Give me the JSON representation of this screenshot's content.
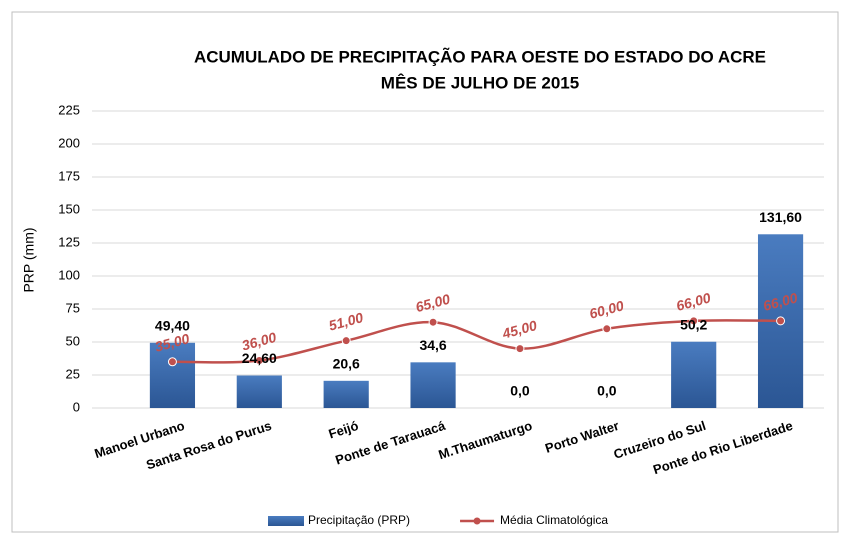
{
  "chart_data": {
    "type": "bar",
    "title": "ACUMULADO DE PRECIPITAÇÃO  PARA  OESTE   DO ESTADO DO ACRE",
    "subtitle": "MÊS DE JULHO DE 2015",
    "y_label": "PRP (mm)",
    "categories": [
      "Manoel Urbano",
      "Santa Rosa do Purus",
      "Feijó",
      "Ponte de Tarauacá",
      "M.Thaumaturgo",
      "Porto Walter",
      "Cruzeiro do Sul",
      "Ponte do Rio Liberdade"
    ],
    "series": [
      {
        "name": "Precipitação (PRP)",
        "type": "bar",
        "color": "#3a68a8",
        "values": [
          49.4,
          24.6,
          20.6,
          34.6,
          0,
          0,
          50.2,
          131.6
        ],
        "value_labels": [
          "49,40",
          "24,60",
          "20,6",
          "34,6",
          "0,0",
          "0,0",
          "50,2",
          "131,60"
        ]
      },
      {
        "name": "Média Climatológica",
        "type": "line",
        "color": "#c0504d",
        "values": [
          35,
          36,
          51,
          65,
          45,
          60,
          66,
          66
        ],
        "value_labels": [
          "35,00",
          "36,00",
          "51,00",
          "65,00",
          "45,00",
          "60,00",
          "66,00",
          "66,00"
        ]
      }
    ],
    "ylim": [
      0,
      225
    ],
    "yticks": [
      0,
      25,
      50,
      75,
      100,
      125,
      150,
      175,
      200,
      225
    ],
    "grid": true,
    "legend": "bottom"
  }
}
